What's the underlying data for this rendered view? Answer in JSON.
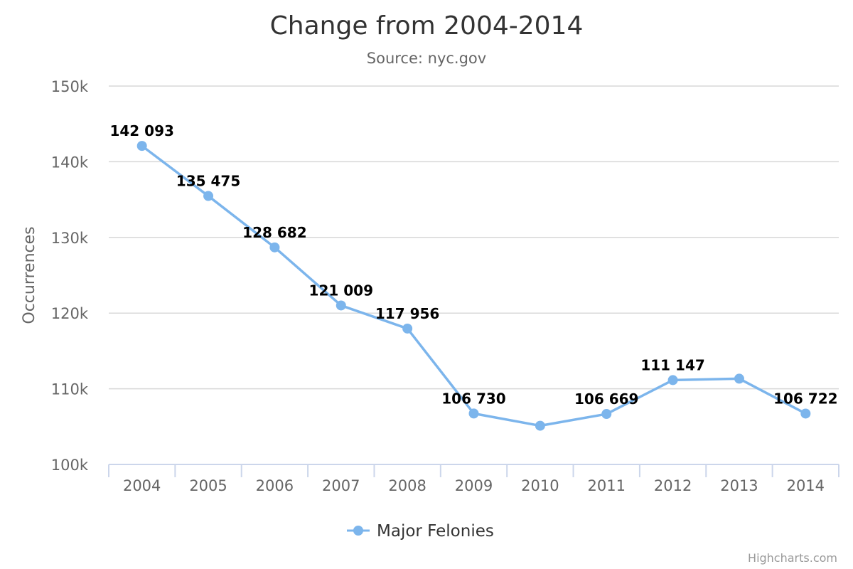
{
  "chart_data": {
    "type": "line",
    "title": "Change from 2004-2014",
    "subtitle": "Source: nyc.gov",
    "ylabel": "Occurrences",
    "xlabel": "",
    "categories": [
      "2004",
      "2005",
      "2006",
      "2007",
      "2008",
      "2009",
      "2010",
      "2011",
      "2012",
      "2013",
      "2014"
    ],
    "series": [
      {
        "name": "Major Felonies",
        "values": [
          142093,
          135475,
          128682,
          121009,
          117956,
          106730,
          105115,
          106669,
          111147,
          111335,
          106722
        ],
        "data_labels": [
          "142 093",
          "135 475",
          "128 682",
          "121 009",
          "117 956",
          "106 730",
          "",
          "106 669",
          "111 147",
          "",
          "106 722"
        ]
      }
    ],
    "ylim": [
      100000,
      150000
    ],
    "y_ticks": [
      100000,
      110000,
      120000,
      130000,
      140000,
      150000
    ],
    "y_tick_labels": [
      "100k",
      "110k",
      "120k",
      "130k",
      "140k",
      "150k"
    ],
    "grid": true,
    "legend_position": "bottom-center",
    "colors": {
      "series": "#7cb5ec",
      "grid": "#d8d8d8",
      "axis": "#ccd6eb"
    }
  },
  "credits": "Highcharts.com"
}
